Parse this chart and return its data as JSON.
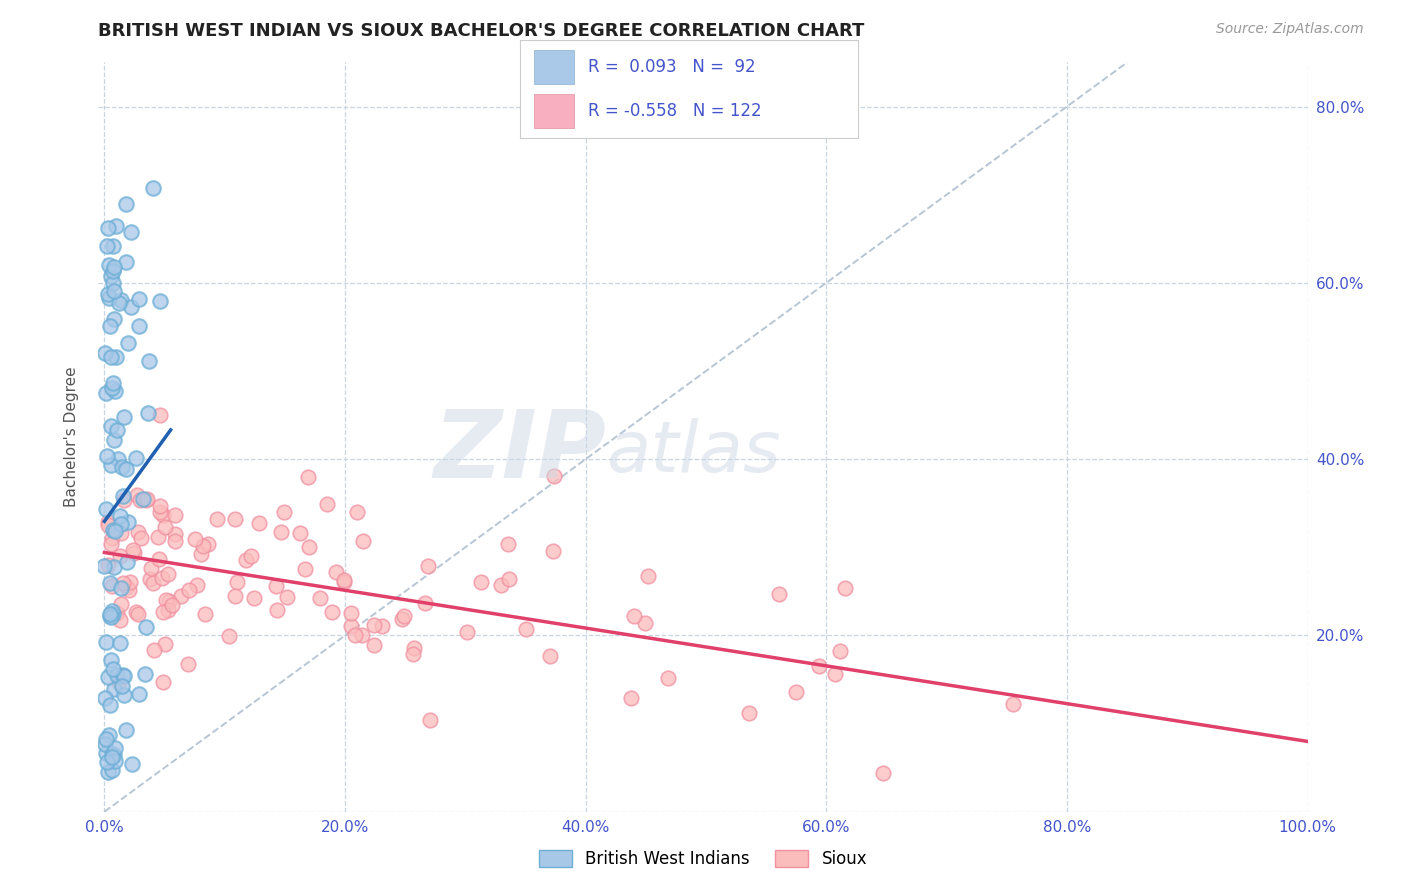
{
  "title": "BRITISH WEST INDIAN VS SIOUX BACHELOR'S DEGREE CORRELATION CHART",
  "source": "Source: ZipAtlas.com",
  "ylabel": "Bachelor's Degree",
  "xlim": [
    -0.005,
    1.0
  ],
  "ylim": [
    0,
    0.85
  ],
  "xticks": [
    0.0,
    0.2,
    0.4,
    0.6,
    0.8,
    1.0
  ],
  "yticks": [
    0.0,
    0.2,
    0.4,
    0.6,
    0.8
  ],
  "xtick_labels": [
    "0.0%",
    "20.0%",
    "40.0%",
    "60.0%",
    "80.0%",
    "100.0%"
  ],
  "right_ytick_labels": [
    "",
    "20.0%",
    "40.0%",
    "60.0%",
    "80.0%"
  ],
  "blue_R": 0.093,
  "blue_N": 92,
  "pink_R": -0.558,
  "pink_N": 122,
  "blue_dot_color": "#a8c8e8",
  "blue_dot_edge": "#6baed6",
  "pink_dot_color": "#fbbcbc",
  "pink_dot_edge": "#f090a0",
  "blue_line_color": "#2060b0",
  "pink_line_color": "#e0406a",
  "ref_line_color": "#b0c0d0",
  "legend_box_blue": "#aac8e8",
  "legend_box_pink": "#f8b0c0",
  "legend_label_blue": "British West Indians",
  "legend_label_pink": "Sioux",
  "watermark_zip_color": "#c8d8e8",
  "watermark_atlas_color": "#b8c8d8",
  "background_color": "#ffffff",
  "grid_color": "#c8d4e0",
  "title_color": "#222222",
  "ylabel_color": "#555555",
  "tick_color": "#4455cc",
  "source_color": "#999999"
}
